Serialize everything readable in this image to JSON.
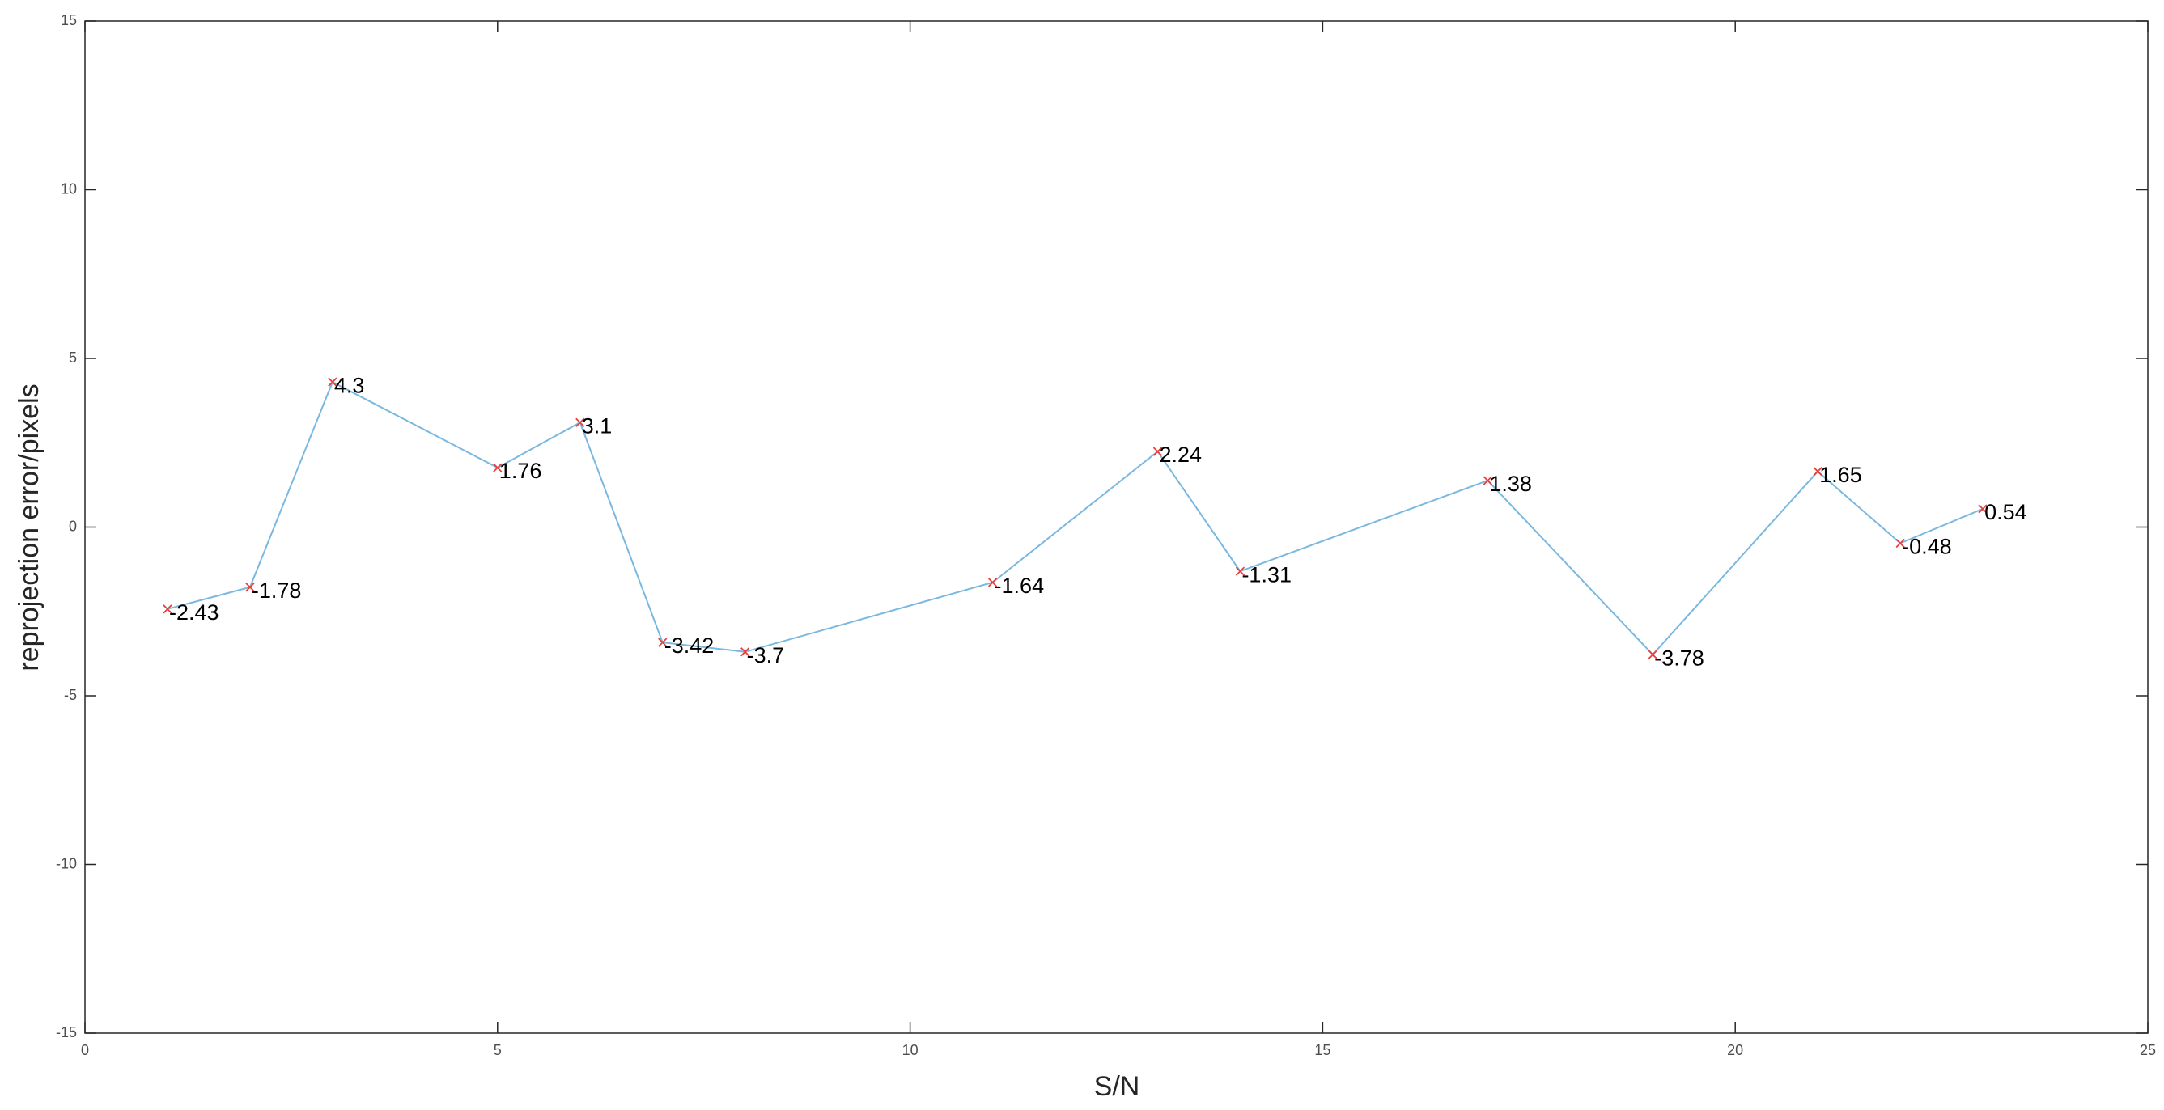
{
  "chart_data": {
    "type": "line",
    "xlabel": "S/N",
    "ylabel": "reprojection error/pixels",
    "x": [
      1,
      2,
      3,
      5,
      6,
      7,
      8,
      11,
      13,
      14,
      17,
      19,
      21,
      22,
      23
    ],
    "series": [
      {
        "color": "#7ab8e0",
        "marker_color": "#e8403c",
        "values": [
          -2.43,
          -1.78,
          4.3,
          1.76,
          3.1,
          -3.42,
          -3.7,
          -1.64,
          2.24,
          -1.31,
          1.38,
          -3.78,
          1.65,
          -0.48,
          0.54
        ]
      }
    ],
    "xlim": [
      0,
      25
    ],
    "xticks": [
      0,
      5,
      10,
      15,
      20,
      25
    ],
    "ylim": [
      -15,
      15
    ],
    "yticks": [
      -15,
      -10,
      -5,
      0,
      5,
      10,
      15
    ],
    "grid": false
  }
}
